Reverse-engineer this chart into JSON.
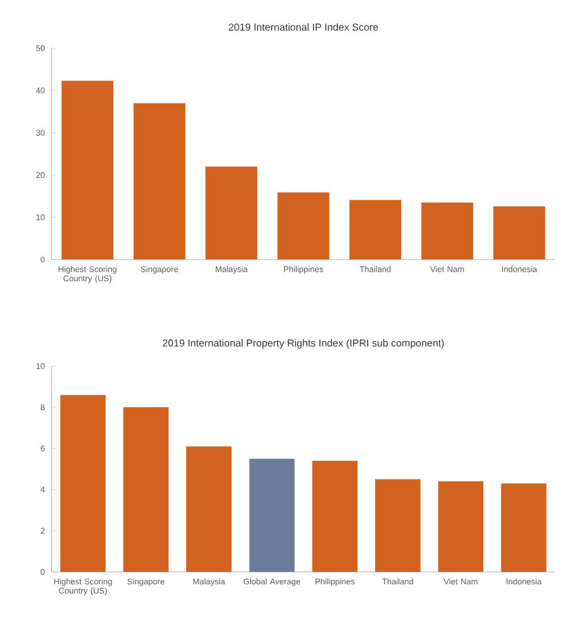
{
  "chart_data": [
    {
      "type": "bar",
      "title": "2019 International IP Index Score",
      "categories": [
        "Highest Scoring Country (US)",
        "Singapore",
        "Malaysia",
        "Philippines",
        "Thailand",
        "Viet Nam",
        "Indonesia"
      ],
      "values": [
        42.3,
        37.0,
        22.0,
        15.9,
        14.1,
        13.5,
        12.6
      ],
      "color": "#d2621f",
      "ylim": [
        0,
        50
      ],
      "yticks": [
        0,
        10,
        20,
        30,
        40,
        50
      ]
    },
    {
      "type": "bar",
      "title": "2019 International Property Rights Index (IPRI sub component)",
      "categories": [
        "Highest Scoring Country (US)",
        "Singapore",
        "Malaysia",
        "Global Average",
        "Philippines",
        "Thailand",
        "Viet Nam",
        "Indonesia"
      ],
      "values": [
        8.6,
        8.0,
        6.1,
        5.5,
        5.4,
        4.5,
        4.4,
        4.3
      ],
      "colors": [
        "#d2621f",
        "#d2621f",
        "#d2621f",
        "#6b7c98",
        "#d2621f",
        "#d2621f",
        "#d2621f",
        "#d2621f"
      ],
      "ylim": [
        0,
        10
      ],
      "yticks": [
        0,
        2,
        4,
        6,
        8,
        10
      ]
    }
  ]
}
